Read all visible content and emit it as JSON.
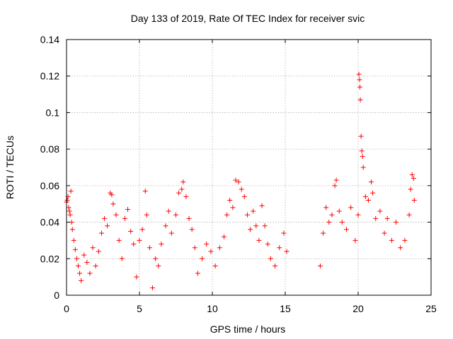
{
  "chart_data": {
    "type": "scatter",
    "title": "Day 133 of 2019, Rate Of TEC Index for receiver svic",
    "xlabel": "GPS time / hours",
    "ylabel": "ROTI / TECUs",
    "xlim": [
      0,
      25
    ],
    "ylim": [
      0,
      0.14
    ],
    "xticks": [
      0,
      5,
      10,
      15,
      20,
      25
    ],
    "xtick_labels": [
      "0",
      "5",
      "10",
      "15",
      "20",
      "25"
    ],
    "yticks": [
      0,
      0.02,
      0.04,
      0.06,
      0.08,
      0.1,
      0.12,
      0.14
    ],
    "ytick_labels": [
      "0",
      "0.02",
      "0.04",
      "0.06",
      "0.08",
      "0.1",
      "0.12",
      "0.14"
    ],
    "grid": true,
    "marker": "+",
    "marker_color": "#ff0000",
    "data_gap_hours": [
      15.2,
      17.4
    ],
    "series": [
      {
        "name": "ROTI",
        "points": [
          [
            0.0,
            0.051
          ],
          [
            0.05,
            0.052
          ],
          [
            0.1,
            0.054
          ],
          [
            0.15,
            0.048
          ],
          [
            0.2,
            0.046
          ],
          [
            0.25,
            0.044
          ],
          [
            0.3,
            0.057
          ],
          [
            0.35,
            0.04
          ],
          [
            0.4,
            0.036
          ],
          [
            0.5,
            0.03
          ],
          [
            0.6,
            0.025
          ],
          [
            0.7,
            0.02
          ],
          [
            0.8,
            0.016
          ],
          [
            0.9,
            0.012
          ],
          [
            1.0,
            0.008
          ],
          [
            1.2,
            0.022
          ],
          [
            1.4,
            0.018
          ],
          [
            1.6,
            0.012
          ],
          [
            1.8,
            0.026
          ],
          [
            2.0,
            0.016
          ],
          [
            2.2,
            0.024
          ],
          [
            2.4,
            0.034
          ],
          [
            2.6,
            0.042
          ],
          [
            2.8,
            0.038
          ],
          [
            3.0,
            0.056
          ],
          [
            3.1,
            0.055
          ],
          [
            3.2,
            0.05
          ],
          [
            3.4,
            0.044
          ],
          [
            3.6,
            0.03
          ],
          [
            3.8,
            0.02
          ],
          [
            4.0,
            0.042
          ],
          [
            4.2,
            0.047
          ],
          [
            4.4,
            0.035
          ],
          [
            4.6,
            0.028
          ],
          [
            4.8,
            0.01
          ],
          [
            5.0,
            0.03
          ],
          [
            5.2,
            0.036
          ],
          [
            5.4,
            0.057
          ],
          [
            5.5,
            0.044
          ],
          [
            5.7,
            0.026
          ],
          [
            5.9,
            0.004
          ],
          [
            6.1,
            0.02
          ],
          [
            6.3,
            0.016
          ],
          [
            6.5,
            0.028
          ],
          [
            6.8,
            0.038
          ],
          [
            7.0,
            0.046
          ],
          [
            7.2,
            0.034
          ],
          [
            7.5,
            0.044
          ],
          [
            7.7,
            0.056
          ],
          [
            7.9,
            0.058
          ],
          [
            8.0,
            0.062
          ],
          [
            8.2,
            0.054
          ],
          [
            8.4,
            0.042
          ],
          [
            8.6,
            0.036
          ],
          [
            8.8,
            0.026
          ],
          [
            9.0,
            0.012
          ],
          [
            9.3,
            0.02
          ],
          [
            9.6,
            0.028
          ],
          [
            9.9,
            0.024
          ],
          [
            10.2,
            0.016
          ],
          [
            10.5,
            0.026
          ],
          [
            10.8,
            0.032
          ],
          [
            11.0,
            0.044
          ],
          [
            11.2,
            0.052
          ],
          [
            11.4,
            0.048
          ],
          [
            11.6,
            0.063
          ],
          [
            11.8,
            0.062
          ],
          [
            12.0,
            0.058
          ],
          [
            12.2,
            0.054
          ],
          [
            12.4,
            0.044
          ],
          [
            12.6,
            0.036
          ],
          [
            12.8,
            0.046
          ],
          [
            13.0,
            0.038
          ],
          [
            13.2,
            0.03
          ],
          [
            13.4,
            0.049
          ],
          [
            13.6,
            0.038
          ],
          [
            13.8,
            0.028
          ],
          [
            14.0,
            0.02
          ],
          [
            14.3,
            0.016
          ],
          [
            14.6,
            0.026
          ],
          [
            14.9,
            0.034
          ],
          [
            15.1,
            0.024
          ],
          [
            17.4,
            0.016
          ],
          [
            17.6,
            0.034
          ],
          [
            17.8,
            0.048
          ],
          [
            18.0,
            0.04
          ],
          [
            18.2,
            0.044
          ],
          [
            18.4,
            0.06
          ],
          [
            18.5,
            0.063
          ],
          [
            18.7,
            0.046
          ],
          [
            18.9,
            0.04
          ],
          [
            19.2,
            0.036
          ],
          [
            19.5,
            0.048
          ],
          [
            19.8,
            0.03
          ],
          [
            20.0,
            0.044
          ],
          [
            20.05,
            0.121
          ],
          [
            20.1,
            0.118
          ],
          [
            20.12,
            0.114
          ],
          [
            20.15,
            0.107
          ],
          [
            20.2,
            0.087
          ],
          [
            20.25,
            0.079
          ],
          [
            20.3,
            0.076
          ],
          [
            20.35,
            0.07
          ],
          [
            20.5,
            0.054
          ],
          [
            20.7,
            0.052
          ],
          [
            20.9,
            0.062
          ],
          [
            21.0,
            0.056
          ],
          [
            21.2,
            0.042
          ],
          [
            21.5,
            0.046
          ],
          [
            21.8,
            0.034
          ],
          [
            22.0,
            0.042
          ],
          [
            22.3,
            0.03
          ],
          [
            22.6,
            0.04
          ],
          [
            22.9,
            0.026
          ],
          [
            23.2,
            0.03
          ],
          [
            23.5,
            0.044
          ],
          [
            23.6,
            0.058
          ],
          [
            23.7,
            0.066
          ],
          [
            23.8,
            0.064
          ],
          [
            23.85,
            0.052
          ]
        ]
      }
    ]
  }
}
